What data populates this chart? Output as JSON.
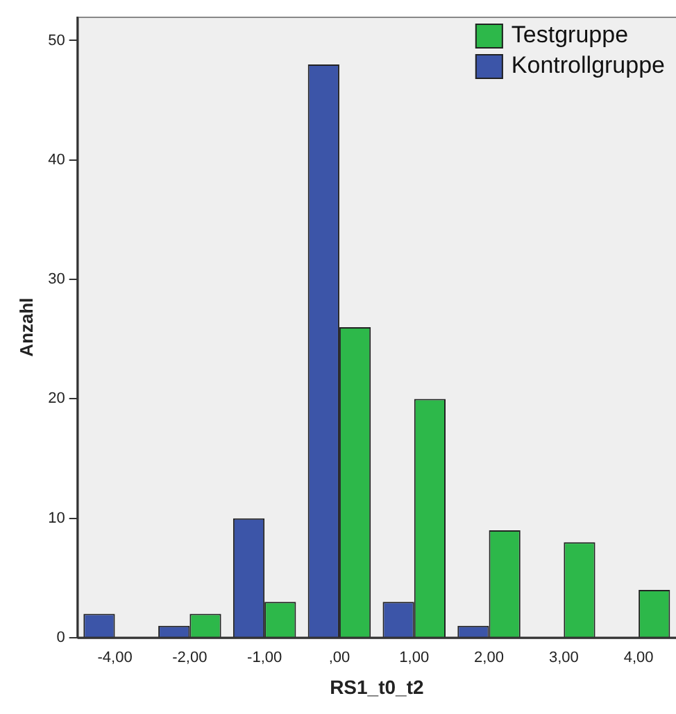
{
  "chart_data": {
    "type": "bar",
    "xlabel": "RS1_t0_t2",
    "ylabel": "Anzahl",
    "categories": [
      "-4,00",
      "-2,00",
      "-1,00",
      ",00",
      "1,00",
      "2,00",
      "3,00",
      "4,00"
    ],
    "series": [
      {
        "name": "Kontrollgruppe",
        "color": "#3c55a8",
        "values": [
          2,
          1,
          10,
          48,
          3,
          1,
          0,
          0
        ]
      },
      {
        "name": "Testgruppe",
        "color": "#2db84a",
        "values": [
          0,
          2,
          3,
          26,
          20,
          9,
          8,
          4
        ]
      }
    ],
    "ylim": [
      0,
      52
    ],
    "yticks": [
      0,
      10,
      20,
      30,
      40,
      50
    ],
    "grid": false,
    "legend": "top right"
  }
}
